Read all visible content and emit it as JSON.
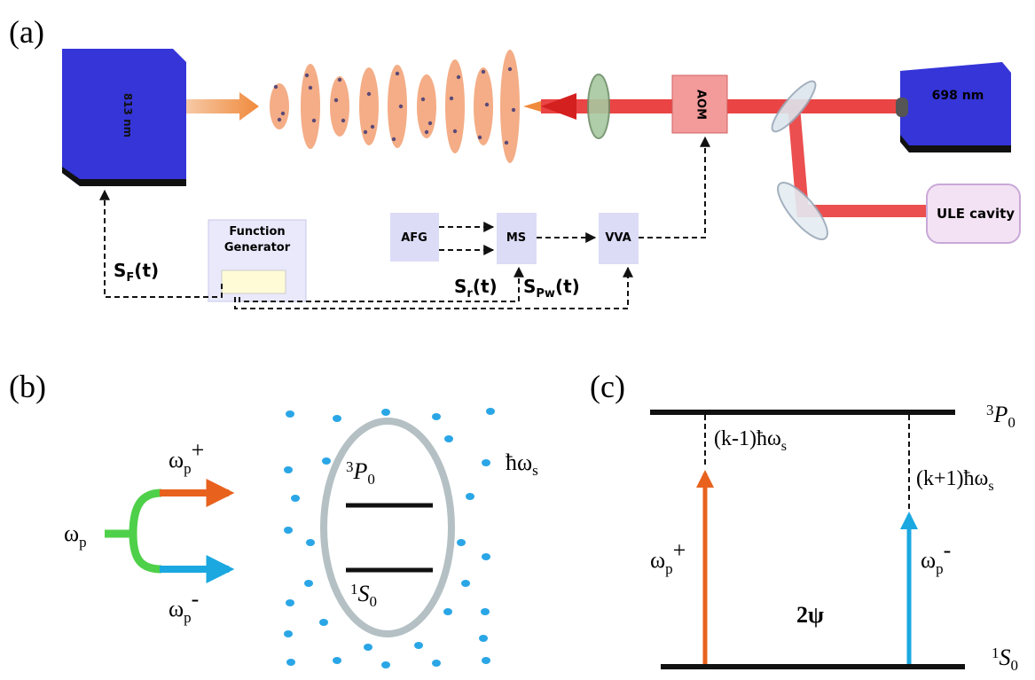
{
  "panel_a": {
    "label": "(a)",
    "laser_813": "813 nm",
    "laser_698": "698 nm",
    "aom": "AOM",
    "ule": "ULE cavity",
    "function_generator": [
      "Function",
      "Generator"
    ],
    "afg": "AFG",
    "ms": "MS",
    "vva": "VVA",
    "signal_f": {
      "base": "S",
      "sub": "F",
      "rest": "(t)"
    },
    "signal_r": {
      "base": "S",
      "sub": "r",
      "rest": "(t)"
    },
    "signal_pw": {
      "base": "S",
      "sub": "Pw",
      "rest": "(t)"
    }
  },
  "panel_b": {
    "label": "(b)",
    "omega_p": {
      "base": "ω",
      "sub": "p"
    },
    "omega_plus": {
      "base": "ω",
      "sub": "p",
      "sup": "+"
    },
    "omega_minus": {
      "base": "ω",
      "sub": "p",
      "sup": "-"
    },
    "upper_level": {
      "sup": "3",
      "base": "P",
      "sub": "0"
    },
    "lower_level": {
      "sup": "1",
      "base": "S",
      "sub": "0"
    },
    "photon": {
      "base": "ħω",
      "sub": "s"
    }
  },
  "panel_c": {
    "label": "(c)",
    "upper_level": {
      "sup": "3",
      "base": "P",
      "sub": "0"
    },
    "lower_level": {
      "sup": "1",
      "base": "S",
      "sub": "0"
    },
    "detuning_minus": {
      "base": "(k-1)ħω",
      "sub": "s"
    },
    "detuning_plus": {
      "base": "(k+1)ħω",
      "sub": "s"
    },
    "omega_plus": {
      "base": "ω",
      "sub": "p",
      "sup": "+"
    },
    "omega_minus": {
      "base": "ω",
      "sub": "p",
      "sup": "-"
    },
    "phase": "2ψ"
  }
}
